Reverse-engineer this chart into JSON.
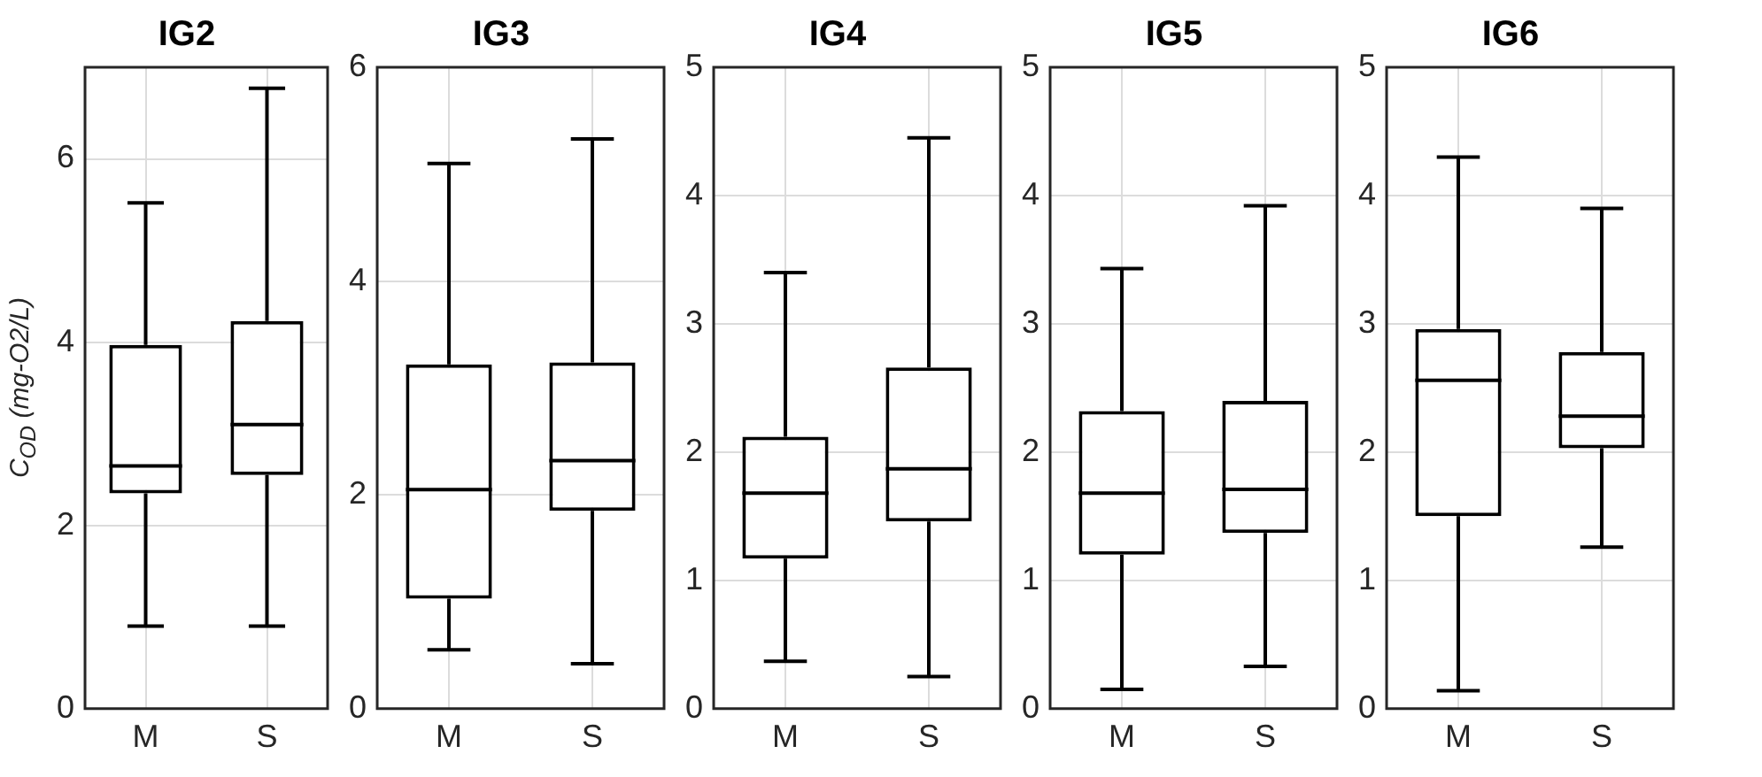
{
  "chart_data": [
    {
      "type": "box",
      "title": "IG2",
      "ylabel": "C$_{OD}$ (mg-O2/L)",
      "categories": [
        "M",
        "S"
      ],
      "color": "#000000",
      "grid": true,
      "ylim": [
        0,
        7
      ],
      "yticks": [
        0,
        2,
        4,
        6
      ],
      "boxes": [
        {
          "low": 0.9,
          "q1": 2.35,
          "median": 2.65,
          "q3": 3.97,
          "high": 5.52
        },
        {
          "low": 0.9,
          "q1": 2.55,
          "median": 3.1,
          "q3": 4.23,
          "high": 6.77
        }
      ]
    },
    {
      "type": "box",
      "title": "IG3",
      "categories": [
        "M",
        "S"
      ],
      "color": "#000000",
      "grid": true,
      "ylim": [
        0,
        6
      ],
      "yticks": [
        0,
        2,
        4,
        6
      ],
      "boxes": [
        {
          "low": 0.55,
          "q1": 1.03,
          "median": 2.05,
          "q3": 3.22,
          "high": 5.1
        },
        {
          "low": 0.42,
          "q1": 1.85,
          "median": 2.32,
          "q3": 3.24,
          "high": 5.33
        }
      ]
    },
    {
      "type": "box",
      "title": "IG4",
      "categories": [
        "M",
        "S"
      ],
      "color": "#000000",
      "grid": true,
      "ylim": [
        0,
        5
      ],
      "yticks": [
        0,
        1,
        2,
        3,
        4,
        5
      ],
      "boxes": [
        {
          "low": 0.37,
          "q1": 1.17,
          "median": 1.68,
          "q3": 2.12,
          "high": 3.4
        },
        {
          "low": 0.25,
          "q1": 1.46,
          "median": 1.87,
          "q3": 2.66,
          "high": 4.45
        }
      ]
    },
    {
      "type": "box",
      "title": "IG5",
      "categories": [
        "M",
        "S"
      ],
      "color": "#000000",
      "grid": true,
      "ylim": [
        0,
        5
      ],
      "yticks": [
        0,
        1,
        2,
        3,
        4,
        5
      ],
      "boxes": [
        {
          "low": 0.15,
          "q1": 1.2,
          "median": 1.68,
          "q3": 2.32,
          "high": 3.43
        },
        {
          "low": 0.33,
          "q1": 1.37,
          "median": 1.71,
          "q3": 2.4,
          "high": 3.92
        }
      ]
    },
    {
      "type": "box",
      "title": "IG6",
      "categories": [
        "M",
        "S"
      ],
      "color": "#000000",
      "grid": true,
      "ylim": [
        0,
        5
      ],
      "yticks": [
        0,
        1,
        2,
        3,
        4,
        5
      ],
      "boxes": [
        {
          "low": 0.14,
          "q1": 1.5,
          "median": 2.56,
          "q3": 2.96,
          "high": 4.3
        },
        {
          "low": 1.26,
          "q1": 2.03,
          "median": 2.28,
          "q3": 2.78,
          "high": 3.9
        }
      ]
    }
  ]
}
